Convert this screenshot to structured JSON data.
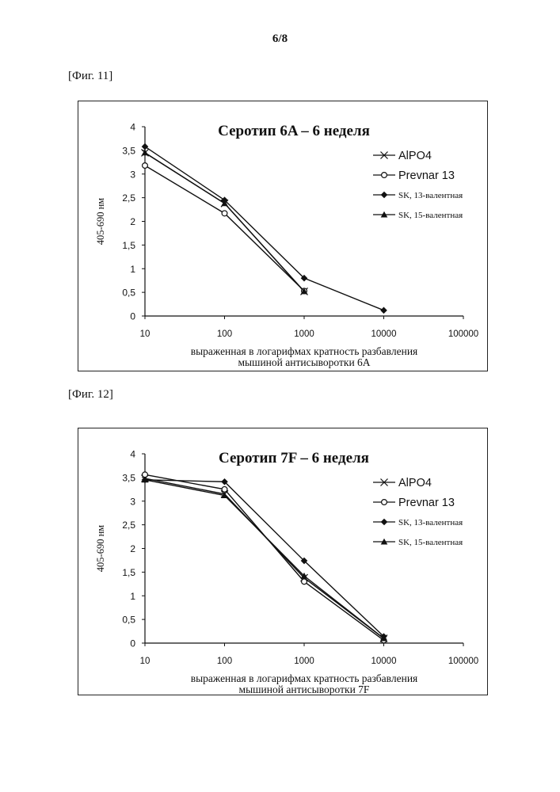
{
  "page": {
    "number": "6/8"
  },
  "figures": [
    {
      "label": "[Фиг. 11]"
    },
    {
      "label": "[Фиг. 12]"
    }
  ],
  "chart_data": [
    {
      "type": "line",
      "title": "Серотип 6A – 6 неделя",
      "xlabel_line1": "выраженная в логарифмах кратность разбавления",
      "xlabel_line2": "мышиной антисыворотки 6А",
      "ylabel": "405-690 нм",
      "x_scale": "log",
      "xlim": [
        10,
        100000
      ],
      "ylim": [
        0,
        4
      ],
      "x_ticks": [
        10,
        100,
        1000,
        10000,
        100000
      ],
      "x_tick_labels": [
        "10",
        "100",
        "1000",
        "10000",
        "100000"
      ],
      "y_ticks": [
        0,
        0.5,
        1,
        1.5,
        2,
        2.5,
        3,
        3.5,
        4
      ],
      "y_tick_labels": [
        "0",
        "0,5",
        "1",
        "1,5",
        "2",
        "2,5",
        "3",
        "3,5",
        "4"
      ],
      "legend_position": "right",
      "grid": false,
      "series": [
        {
          "name": "AlPO4",
          "marker": "x",
          "font": "sans",
          "color": "#111111",
          "x": [
            10,
            100,
            1000
          ],
          "y": [
            3.45,
            2.38,
            0.52
          ]
        },
        {
          "name": "Prevnar 13",
          "marker": "circle-open",
          "font": "sans",
          "color": "#111111",
          "x": [
            10,
            100,
            1000
          ],
          "y": [
            3.18,
            2.17,
            0.53
          ]
        },
        {
          "name": "SK, 13-валентная",
          "marker": "diamond",
          "font": "serif",
          "color": "#111111",
          "x": [
            10,
            100,
            1000,
            10000
          ],
          "y": [
            3.58,
            2.45,
            0.8,
            0.12
          ]
        },
        {
          "name": "SK, 15-валентная",
          "marker": "triangle",
          "font": "serif",
          "color": "#111111",
          "x": [
            10,
            100,
            1000
          ],
          "y": [
            3.45,
            2.38,
            0.52
          ]
        }
      ]
    },
    {
      "type": "line",
      "title": "Серотип 7F – 6 неделя",
      "xlabel_line1": "выраженная в логарифмах кратность разбавления",
      "xlabel_line2": "мышиной антисыворотки 7F",
      "ylabel": "405-690 нм",
      "x_scale": "log",
      "xlim": [
        10,
        100000
      ],
      "ylim": [
        0,
        4
      ],
      "x_ticks": [
        10,
        100,
        1000,
        10000,
        100000
      ],
      "x_tick_labels": [
        "10",
        "100",
        "1000",
        "10000",
        "100000"
      ],
      "y_ticks": [
        0,
        0.5,
        1,
        1.5,
        2,
        2.5,
        3,
        3.5,
        4
      ],
      "y_tick_labels": [
        "0",
        "0,5",
        "1",
        "1,5",
        "2",
        "2,5",
        "3",
        "3,5",
        "4"
      ],
      "legend_position": "right",
      "grid": false,
      "series": [
        {
          "name": "AlPO4",
          "marker": "x",
          "font": "sans",
          "color": "#111111",
          "x": [
            10,
            100,
            1000,
            10000
          ],
          "y": [
            3.48,
            3.15,
            1.38,
            0.1
          ]
        },
        {
          "name": "Prevnar 13",
          "marker": "circle-open",
          "font": "sans",
          "color": "#111111",
          "x": [
            10,
            100,
            1000,
            10000
          ],
          "y": [
            3.56,
            3.25,
            1.3,
            0.06
          ]
        },
        {
          "name": "SK, 13-валентная",
          "marker": "diamond",
          "font": "serif",
          "color": "#111111",
          "x": [
            10,
            100,
            1000,
            10000
          ],
          "y": [
            3.45,
            3.41,
            1.74,
            0.14
          ]
        },
        {
          "name": "SK, 15-валентная",
          "marker": "triangle",
          "font": "serif",
          "color": "#111111",
          "x": [
            10,
            100,
            1000,
            10000
          ],
          "y": [
            3.45,
            3.12,
            1.42,
            0.1
          ]
        }
      ]
    }
  ]
}
